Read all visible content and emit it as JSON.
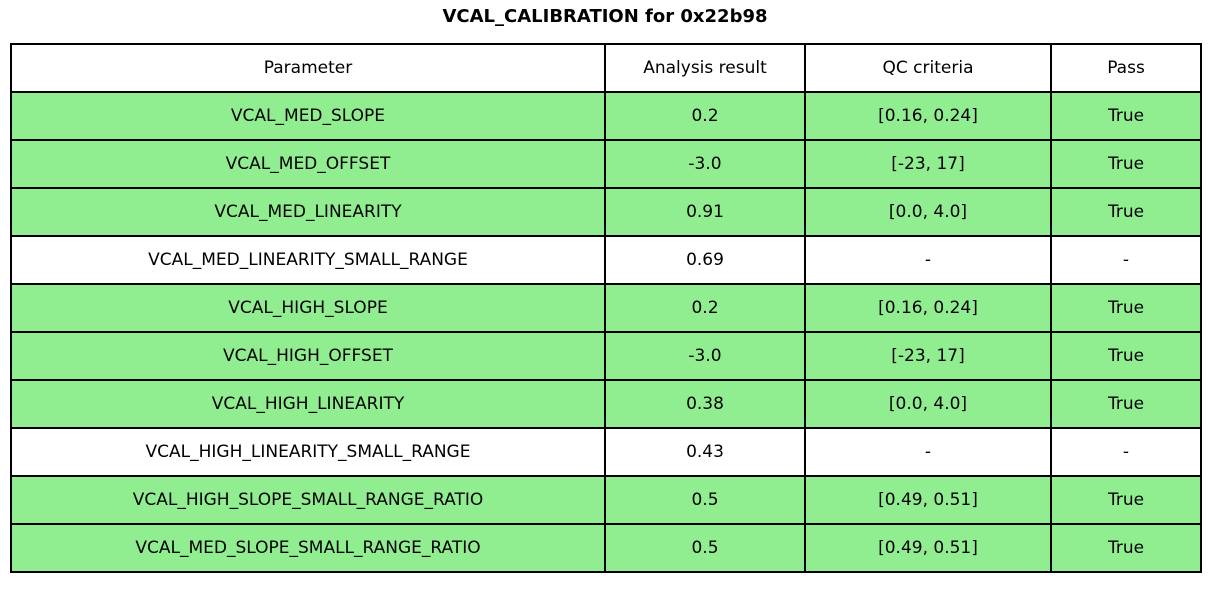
{
  "chart_data": {
    "type": "table",
    "title": "VCAL_CALIBRATION for 0x22b98",
    "columns": [
      "Parameter",
      "Analysis result",
      "QC criteria",
      "Pass"
    ],
    "rows": [
      [
        "VCAL_MED_SLOPE",
        "0.2",
        "[0.16, 0.24]",
        "True"
      ],
      [
        "VCAL_MED_OFFSET",
        "-3.0",
        "[-23, 17]",
        "True"
      ],
      [
        "VCAL_MED_LINEARITY",
        "0.91",
        "[0.0, 4.0]",
        "True"
      ],
      [
        "VCAL_MED_LINEARITY_SMALL_RANGE",
        "0.69",
        "-",
        "-"
      ],
      [
        "VCAL_HIGH_SLOPE",
        "0.2",
        "[0.16, 0.24]",
        "True"
      ],
      [
        "VCAL_HIGH_OFFSET",
        "-3.0",
        "[-23, 17]",
        "True"
      ],
      [
        "VCAL_HIGH_LINEARITY",
        "0.38",
        "[0.0, 4.0]",
        "True"
      ],
      [
        "VCAL_HIGH_LINEARITY_SMALL_RANGE",
        "0.43",
        "-",
        "-"
      ],
      [
        "VCAL_HIGH_SLOPE_SMALL_RANGE_RATIO",
        "0.5",
        "[0.49, 0.51]",
        "True"
      ],
      [
        "VCAL_MED_SLOPE_SMALL_RANGE_RATIO",
        "0.5",
        "[0.49, 0.51]",
        "True"
      ]
    ],
    "row_passed": [
      true,
      true,
      true,
      false,
      true,
      true,
      true,
      false,
      true,
      true
    ],
    "layout": {
      "legend": "none",
      "grid": "table-borders"
    },
    "colors": {
      "pass_row_bg": "#90ee90",
      "neutral_row_bg": "#ffffff",
      "header_bg": "#ffffff",
      "border": "#000000",
      "text": "#000000"
    }
  }
}
